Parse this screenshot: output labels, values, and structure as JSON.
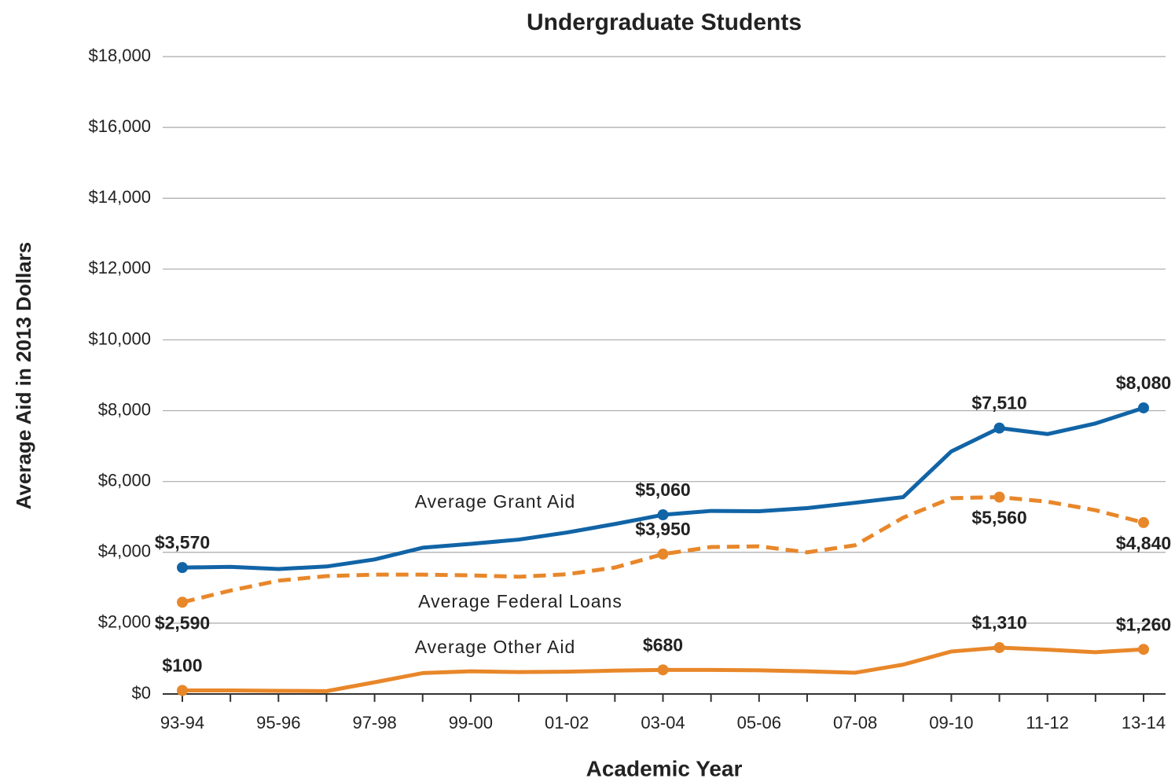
{
  "chart_data": {
    "type": "line",
    "title": "Undergraduate Students",
    "x_label": "Academic Year",
    "y_label": "Average Aid in 2013 Dollars",
    "categories": [
      "93-94",
      null,
      "95-96",
      null,
      "97-98",
      null,
      "99-00",
      null,
      "01-02",
      null,
      "03-04",
      null,
      "05-06",
      null,
      "07-08",
      null,
      "09-10",
      null,
      "11-12",
      null,
      "13-14"
    ],
    "ylim": [
      0,
      18000
    ],
    "yticks": [
      {
        "value": 0,
        "label": "$0"
      },
      {
        "value": 2000,
        "label": "$2,000"
      },
      {
        "value": 4000,
        "label": "$4,000"
      },
      {
        "value": 6000,
        "label": "$6,000"
      },
      {
        "value": 8000,
        "label": "$8,000"
      },
      {
        "value": 10000,
        "label": "$10,000"
      },
      {
        "value": 12000,
        "label": "$12,000"
      },
      {
        "value": 14000,
        "label": "$14,000"
      },
      {
        "value": 16000,
        "label": "$16,000"
      },
      {
        "value": 18000,
        "label": "$18,000"
      }
    ],
    "grid": true,
    "series": [
      {
        "name": "Average Grant Aid",
        "color": "#1164a6",
        "dashed": false,
        "values": [
          3570,
          3590,
          3530,
          3600,
          3800,
          4130,
          4240,
          4360,
          4560,
          4800,
          5060,
          5170,
          5160,
          5250,
          5400,
          5560,
          6850,
          7510,
          7340,
          7640,
          8080
        ],
        "value_labels": [
          "$3,570",
          null,
          null,
          null,
          null,
          null,
          null,
          null,
          null,
          null,
          "$5,060",
          null,
          null,
          null,
          null,
          null,
          null,
          "$7,510",
          null,
          null,
          "$8,080"
        ]
      },
      {
        "name": "Average Federal Loans",
        "color": "#e8872a",
        "dashed": true,
        "values": [
          2590,
          2920,
          3200,
          3330,
          3370,
          3370,
          3350,
          3310,
          3380,
          3570,
          3950,
          4150,
          4170,
          4000,
          4200,
          4980,
          5530,
          5560,
          5430,
          5190,
          4840
        ],
        "value_labels": [
          "$2,590",
          null,
          null,
          null,
          null,
          null,
          null,
          null,
          null,
          null,
          "$3,950",
          null,
          null,
          null,
          null,
          null,
          null,
          "$5,560",
          null,
          null,
          "$4,840"
        ]
      },
      {
        "name": "Average Other Aid",
        "color": "#e8872a",
        "dashed": false,
        "values": [
          100,
          100,
          90,
          80,
          330,
          590,
          640,
          620,
          630,
          660,
          680,
          680,
          670,
          640,
          600,
          830,
          1200,
          1310,
          1250,
          1180,
          1260
        ],
        "value_labels": [
          "$100",
          null,
          null,
          null,
          null,
          null,
          null,
          null,
          null,
          null,
          "$680",
          null,
          null,
          null,
          null,
          null,
          null,
          "$1,310",
          null,
          null,
          "$1,260"
        ]
      }
    ]
  }
}
